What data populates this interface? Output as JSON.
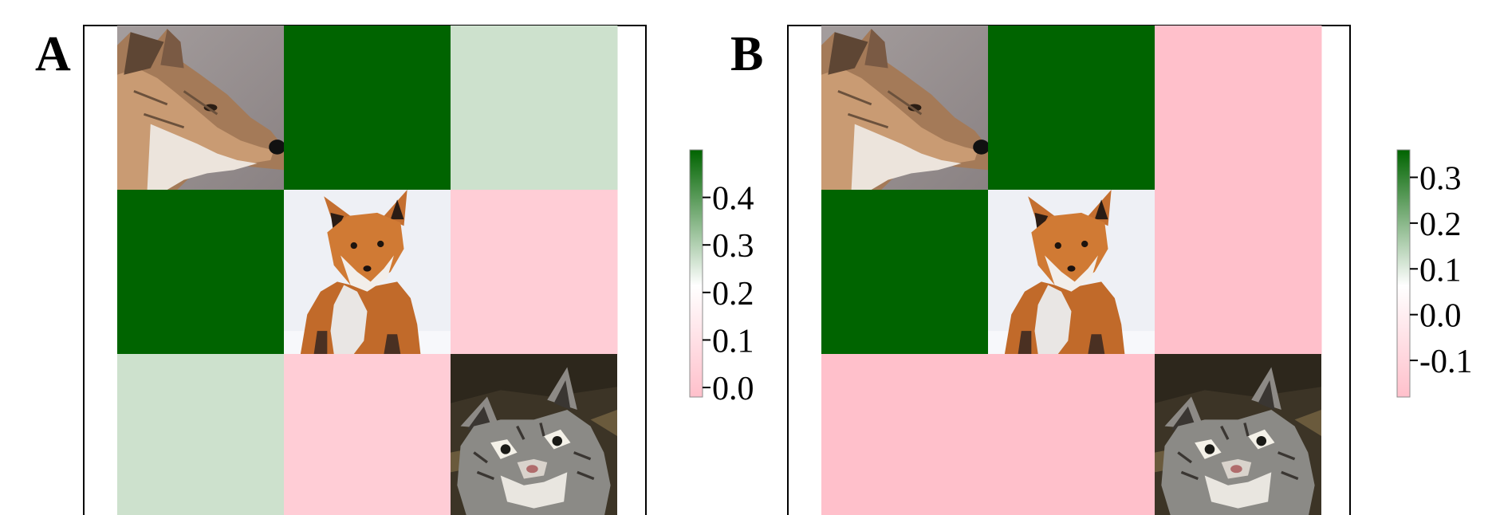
{
  "panels": [
    {
      "label": "A",
      "species": [
        "coyote",
        "red-fox",
        "bobcat"
      ],
      "colors": {
        "low": "#ffc0cb",
        "mid": "#ffffff",
        "high": "#006400"
      },
      "colorbar": {
        "min": -0.02,
        "max": 0.5,
        "ticks": [
          0.4,
          0.3,
          0.2,
          0.1,
          0.0
        ],
        "tick_labels": [
          "0.4",
          "0.3",
          "0.2",
          "0.1",
          "0.0"
        ]
      }
    },
    {
      "label": "B",
      "species": [
        "coyote",
        "red-fox",
        "bobcat"
      ],
      "colors": {
        "low": "#ffc0cb",
        "mid": "#ffffff",
        "high": "#006400"
      },
      "colorbar": {
        "min": -0.18,
        "max": 0.36,
        "ticks": [
          0.3,
          0.2,
          0.1,
          0.0,
          -0.1
        ],
        "tick_labels": [
          "0.3",
          "0.2",
          "0.1",
          "0.0",
          "-0.1"
        ]
      }
    }
  ],
  "chart_data": [
    {
      "type": "heatmap",
      "panel": "A",
      "rows": [
        "coyote",
        "red-fox",
        "bobcat"
      ],
      "cols": [
        "coyote",
        "red-fox",
        "bobcat"
      ],
      "values": [
        [
          null,
          0.5,
          0.27
        ],
        [
          0.5,
          null,
          0.03
        ],
        [
          0.27,
          0.03,
          null
        ]
      ],
      "colorbar_range": [
        -0.02,
        0.5
      ]
    },
    {
      "type": "heatmap",
      "panel": "B",
      "rows": [
        "coyote",
        "red-fox",
        "bobcat"
      ],
      "cols": [
        "coyote",
        "red-fox",
        "bobcat"
      ],
      "values": [
        [
          null,
          0.36,
          -0.18
        ],
        [
          0.36,
          null,
          -0.18
        ],
        [
          -0.18,
          -0.18,
          null
        ]
      ],
      "colorbar_range": [
        -0.18,
        0.36
      ]
    }
  ]
}
